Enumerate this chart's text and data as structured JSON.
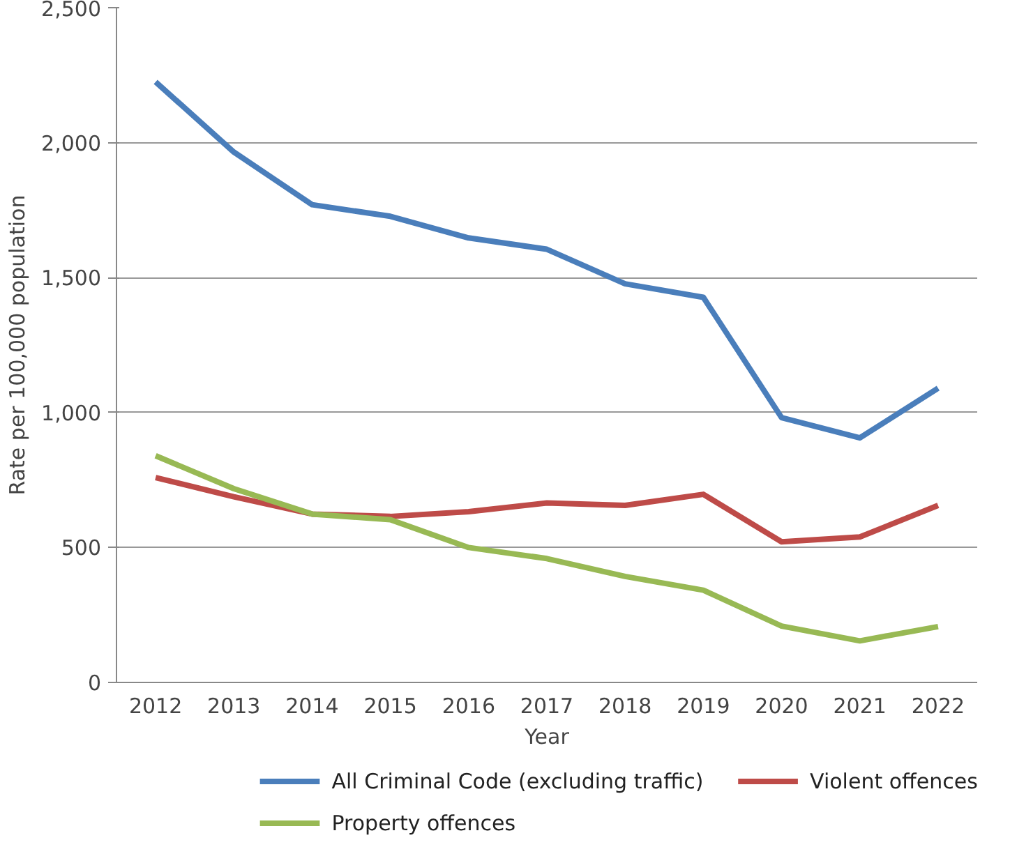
{
  "chart_data": {
    "type": "line",
    "xlabel": "Year",
    "ylabel": "Rate per 100,000 population",
    "categories": [
      "2012",
      "2013",
      "2014",
      "2015",
      "2016",
      "2017",
      "2018",
      "2019",
      "2020",
      "2021",
      "2022"
    ],
    "series": [
      {
        "name": "All Criminal Code (excluding traffic)",
        "color": "#4a7ebb",
        "values": [
          2225,
          1965,
          1770,
          1727,
          1647,
          1605,
          1477,
          1427,
          981,
          906,
          1090
        ]
      },
      {
        "name": "Violent offences",
        "color": "#be4b48",
        "values": [
          759,
          688,
          624,
          615,
          633,
          665,
          656,
          697,
          521,
          539,
          656
        ]
      },
      {
        "name": "Property offences",
        "color": "#98b954",
        "values": [
          840,
          718,
          624,
          603,
          500,
          459,
          393,
          342,
          209,
          154,
          207
        ]
      }
    ],
    "ylim": [
      0,
      2500
    ],
    "yticks": [
      {
        "value": 0,
        "label": "0"
      },
      {
        "value": 500,
        "label": "500"
      },
      {
        "value": 1000,
        "label": "1,000"
      },
      {
        "value": 1500,
        "label": "1,500"
      },
      {
        "value": 2000,
        "label": "2,000"
      },
      {
        "value": 2500,
        "label": "2,500"
      }
    ],
    "grid": "y",
    "legend": "bottom",
    "marker": "none",
    "line_style": "solid"
  }
}
